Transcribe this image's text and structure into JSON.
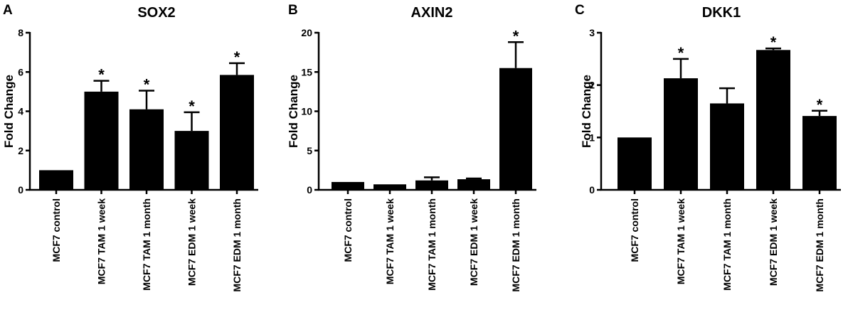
{
  "chart_data": [
    {
      "type": "bar",
      "panel_label": "A",
      "title": "SOX2",
      "ylabel": "Fold Change",
      "xlabel": "",
      "ylim": [
        0,
        8
      ],
      "yticks": [
        0,
        2,
        4,
        6,
        8
      ],
      "categories": [
        "MCF7 control",
        "MCF7 TAM 1 week",
        "MCF7 TAM 1 month",
        "MCF7 EDM 1 week",
        "MCF7 EDM 1 month"
      ],
      "values": [
        1.0,
        5.0,
        4.1,
        3.0,
        5.85
      ],
      "errors": [
        0,
        0.55,
        0.95,
        0.95,
        0.6
      ],
      "significance": [
        "",
        "*",
        "*",
        "*",
        "*"
      ],
      "bar_color": "#000000"
    },
    {
      "type": "bar",
      "panel_label": "B",
      "title": "AXIN2",
      "ylabel": "Fold Change",
      "xlabel": "",
      "ylim": [
        0,
        20
      ],
      "yticks": [
        0,
        5,
        10,
        15,
        20
      ],
      "categories": [
        "MCF7 control",
        "MCF7 TAM 1 week",
        "MCF7 TAM 1 month",
        "MCF7 EDM 1 week",
        "MCF7 EDM 1 month"
      ],
      "values": [
        1.0,
        0.7,
        1.2,
        1.35,
        15.5
      ],
      "errors": [
        0,
        0,
        0.4,
        0.1,
        3.3
      ],
      "significance": [
        "",
        "",
        "",
        "",
        "*"
      ],
      "bar_color": "#000000"
    },
    {
      "type": "bar",
      "panel_label": "C",
      "title": "DKK1",
      "ylabel": "Fold Change",
      "xlabel": "",
      "ylim": [
        0,
        3
      ],
      "yticks": [
        0,
        1,
        2,
        3
      ],
      "categories": [
        "MCF7 control",
        "MCF7 TAM 1 week",
        "MCF7 TAM 1 month",
        "MCF7 EDM 1 week",
        "MCF7 EDM 1 month"
      ],
      "values": [
        1.0,
        2.13,
        1.65,
        2.67,
        1.41
      ],
      "errors": [
        0,
        0.37,
        0.29,
        0.03,
        0.1
      ],
      "significance": [
        "",
        "*",
        "",
        "*",
        "*"
      ],
      "bar_color": "#000000"
    }
  ]
}
